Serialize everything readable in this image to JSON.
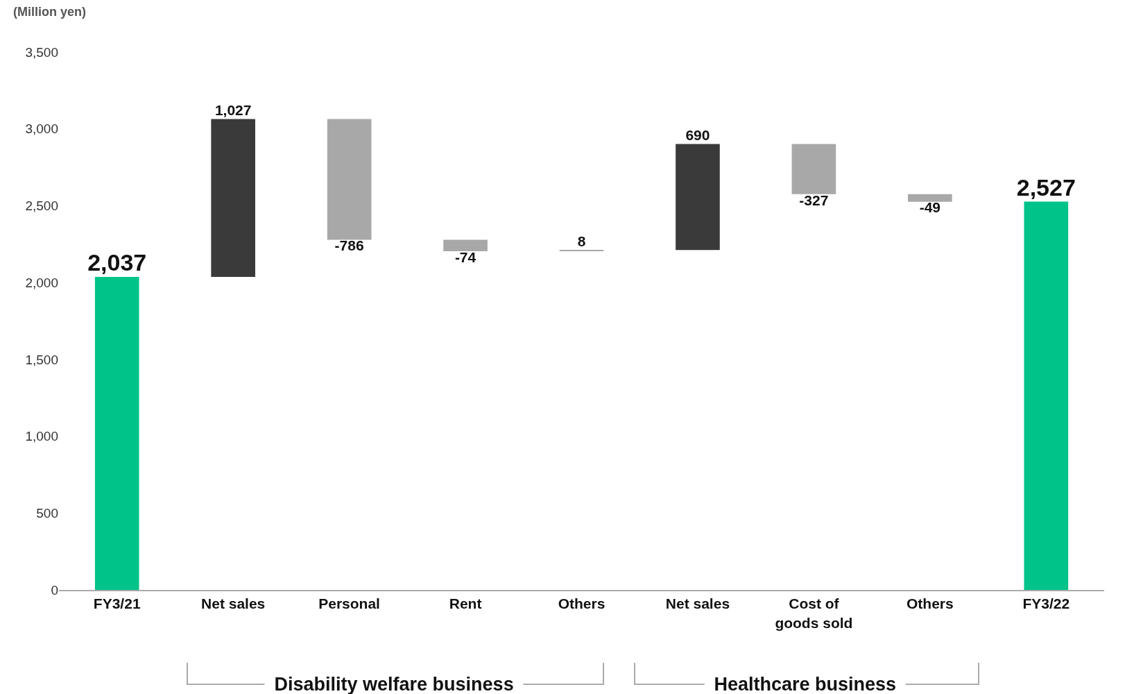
{
  "chart_data": {
    "type": "bar",
    "ylabel": "(Million yen)",
    "categories": [
      "FY3/21",
      "Net sales",
      "Personal",
      "Rent",
      "Others",
      "Net sales",
      "Cost of\ngoods sold",
      "Others",
      "FY3/22"
    ],
    "values": [
      2037,
      1027,
      -786,
      -74,
      8,
      690,
      -327,
      -49,
      2527
    ],
    "base": [
      0,
      2037,
      3064,
      2278,
      2204,
      2212,
      2902,
      2575,
      0
    ],
    "colors": [
      "#00c389",
      "#3a3a3a",
      "#a8a8a8",
      "#a8a8a8",
      "#a8a8a8",
      "#3a3a3a",
      "#a8a8a8",
      "#a8a8a8",
      "#00c389"
    ],
    "value_labels": [
      "2,037",
      "1,027",
      "-786",
      "-74",
      "8",
      "690",
      "-327",
      "-49",
      "2,527"
    ],
    "ylim": [
      0,
      3500
    ],
    "yticks": [
      0,
      500,
      {
        "value": 1000,
        "label": "1,000"
      },
      {
        "value": 1500,
        "label": "1,500"
      },
      {
        "value": 2000,
        "label": "2,000"
      },
      {
        "value": 2500,
        "label": "2,500"
      },
      {
        "value": 3000,
        "label": "3,000"
      },
      {
        "value": 3500,
        "label": "3,500"
      }
    ],
    "grid": false,
    "annotations": [
      "Disability welfare business",
      "Healthcare business"
    ]
  }
}
